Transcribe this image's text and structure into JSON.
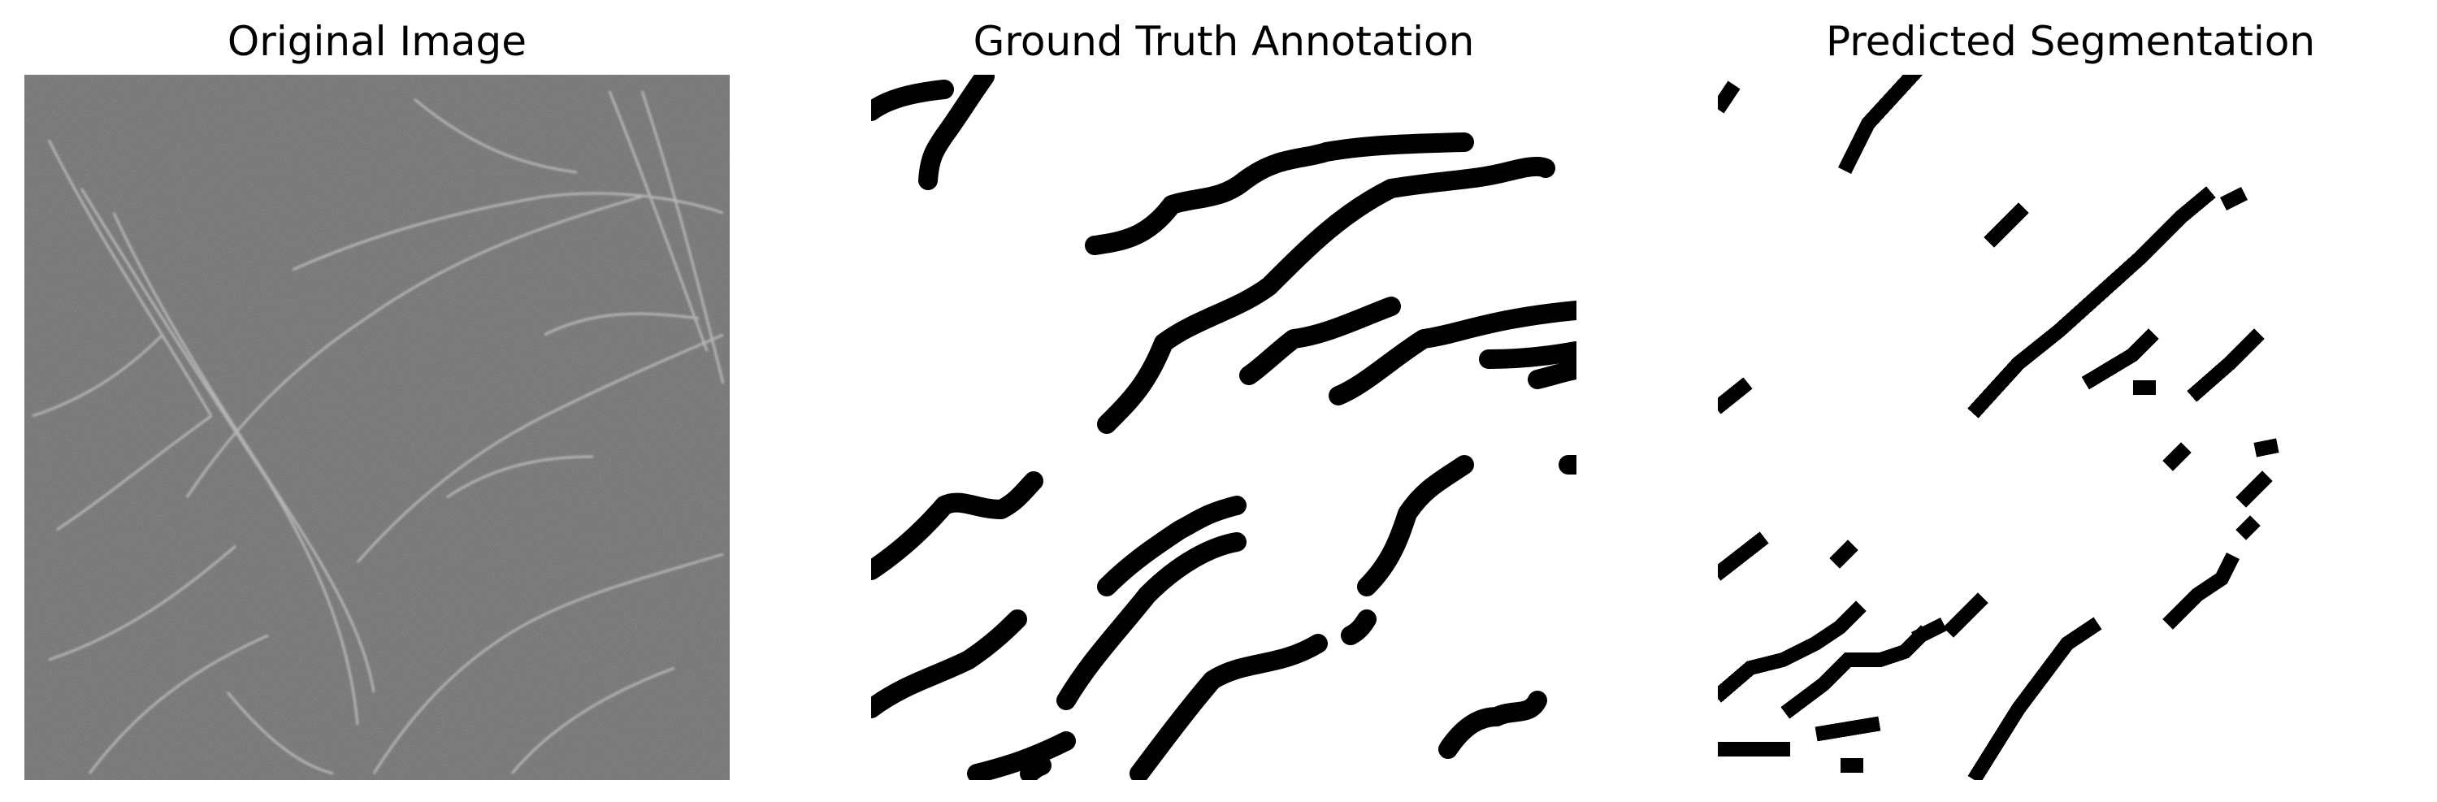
{
  "figure": {
    "panels": [
      {
        "title": "Original Image"
      },
      {
        "title": "Ground Truth Annotation"
      },
      {
        "title": "Predicted Segmentation"
      }
    ]
  },
  "colors": {
    "background": "#ffffff",
    "texture_base": "#6e6e6e",
    "crack_light": "#c8c8c8",
    "mask": "#000000"
  }
}
